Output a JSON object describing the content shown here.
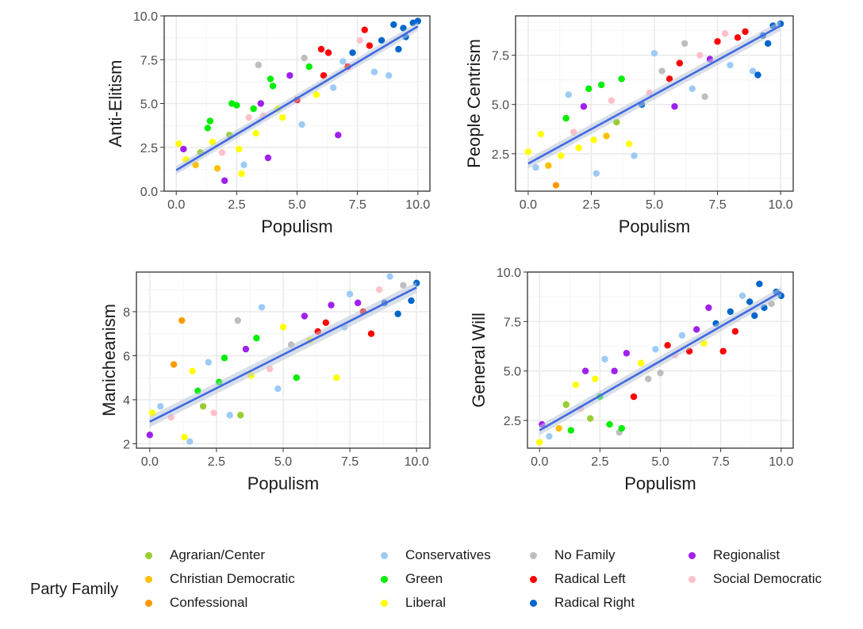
{
  "legend": {
    "title": "Party Family",
    "items": [
      {
        "label": "Agrarian/Center",
        "color": "#9ACD32"
      },
      {
        "label": "Christian Democratic",
        "color": "#FFC000"
      },
      {
        "label": "Confessional",
        "color": "#FF9900"
      },
      {
        "label": "Conservatives",
        "color": "#9DCBF5"
      },
      {
        "label": "Green",
        "color": "#00EE00"
      },
      {
        "label": "Liberal",
        "color": "#FFFF00"
      },
      {
        "label": "No Family",
        "color": "#BEBEBE"
      },
      {
        "label": "Radical Left",
        "color": "#FF0000"
      },
      {
        "label": "Radical Right",
        "color": "#0066CC"
      },
      {
        "label": "Regionalist",
        "color": "#A020F0"
      },
      {
        "label": "Social Democratic",
        "color": "#FFC0CB"
      }
    ]
  },
  "colors": {
    "trend_line": "#4169E1",
    "trend_band": "#B8C4D6",
    "grid_major": "#EBEBEB",
    "panel_border": "#333333"
  },
  "chart_data": [
    {
      "type": "scatter",
      "xlabel": "Populism",
      "ylabel": "Anti-Elitism",
      "xlim": [
        -0.5,
        10.5
      ],
      "ylim": [
        0.0,
        10.0
      ],
      "xticks": [
        "0.0",
        "2.5",
        "5.0",
        "7.5",
        "10.0"
      ],
      "yticks": [
        "0.0",
        "2.5",
        "5.0",
        "7.5",
        "10.0"
      ],
      "trend": {
        "x": [
          0.0,
          10.0
        ],
        "y": [
          1.2,
          9.4
        ]
      },
      "points": [
        {
          "x": 0.1,
          "y": 2.7,
          "g": "Liberal"
        },
        {
          "x": 0.3,
          "y": 2.4,
          "g": "Regionalist"
        },
        {
          "x": 0.4,
          "y": 1.8,
          "g": "Liberal"
        },
        {
          "x": 0.8,
          "y": 1.5,
          "g": "Christian Democratic"
        },
        {
          "x": 1.0,
          "y": 2.2,
          "g": "Agrarian/Center"
        },
        {
          "x": 1.3,
          "y": 3.6,
          "g": "Green"
        },
        {
          "x": 1.4,
          "y": 4.0,
          "g": "Green"
        },
        {
          "x": 1.5,
          "y": 2.8,
          "g": "Liberal"
        },
        {
          "x": 1.7,
          "y": 1.3,
          "g": "Christian Democratic"
        },
        {
          "x": 1.9,
          "y": 2.2,
          "g": "Social Democratic"
        },
        {
          "x": 2.0,
          "y": 0.6,
          "g": "Regionalist"
        },
        {
          "x": 2.2,
          "y": 3.2,
          "g": "Agrarian/Center"
        },
        {
          "x": 2.3,
          "y": 5.0,
          "g": "Green"
        },
        {
          "x": 2.5,
          "y": 4.9,
          "g": "Green"
        },
        {
          "x": 2.6,
          "y": 2.4,
          "g": "Liberal"
        },
        {
          "x": 2.7,
          "y": 1.0,
          "g": "Liberal"
        },
        {
          "x": 2.8,
          "y": 1.5,
          "g": "Conservatives"
        },
        {
          "x": 3.0,
          "y": 4.2,
          "g": "Social Democratic"
        },
        {
          "x": 3.2,
          "y": 4.7,
          "g": "Green"
        },
        {
          "x": 3.3,
          "y": 3.3,
          "g": "Liberal"
        },
        {
          "x": 3.4,
          "y": 7.2,
          "g": "No Family"
        },
        {
          "x": 3.5,
          "y": 5.0,
          "g": "Regionalist"
        },
        {
          "x": 3.6,
          "y": 4.3,
          "g": "Social Democratic"
        },
        {
          "x": 3.8,
          "y": 1.9,
          "g": "Regionalist"
        },
        {
          "x": 3.9,
          "y": 6.4,
          "g": "Green"
        },
        {
          "x": 4.0,
          "y": 6.0,
          "g": "Green"
        },
        {
          "x": 4.2,
          "y": 4.7,
          "g": "Liberal"
        },
        {
          "x": 4.4,
          "y": 4.2,
          "g": "Liberal"
        },
        {
          "x": 4.7,
          "y": 6.6,
          "g": "Regionalist"
        },
        {
          "x": 5.0,
          "y": 5.2,
          "g": "Radical Left"
        },
        {
          "x": 5.2,
          "y": 3.8,
          "g": "Conservatives"
        },
        {
          "x": 5.3,
          "y": 7.6,
          "g": "No Family"
        },
        {
          "x": 5.5,
          "y": 7.1,
          "g": "Green"
        },
        {
          "x": 5.8,
          "y": 5.5,
          "g": "Liberal"
        },
        {
          "x": 6.0,
          "y": 8.1,
          "g": "Radical Left"
        },
        {
          "x": 6.1,
          "y": 6.6,
          "g": "Radical Left"
        },
        {
          "x": 6.3,
          "y": 7.9,
          "g": "Radical Left"
        },
        {
          "x": 6.5,
          "y": 5.9,
          "g": "Conservatives"
        },
        {
          "x": 6.7,
          "y": 3.2,
          "g": "Regionalist"
        },
        {
          "x": 6.9,
          "y": 7.4,
          "g": "Conservatives"
        },
        {
          "x": 7.1,
          "y": 7.1,
          "g": "Radical Left"
        },
        {
          "x": 7.3,
          "y": 7.9,
          "g": "Radical Right"
        },
        {
          "x": 7.6,
          "y": 8.6,
          "g": "Social Democratic"
        },
        {
          "x": 7.8,
          "y": 9.2,
          "g": "Radical Left"
        },
        {
          "x": 8.0,
          "y": 8.3,
          "g": "Radical Left"
        },
        {
          "x": 8.2,
          "y": 6.8,
          "g": "Conservatives"
        },
        {
          "x": 8.5,
          "y": 8.6,
          "g": "Radical Right"
        },
        {
          "x": 8.8,
          "y": 6.6,
          "g": "Conservatives"
        },
        {
          "x": 9.0,
          "y": 9.5,
          "g": "Radical Right"
        },
        {
          "x": 9.2,
          "y": 8.1,
          "g": "Radical Right"
        },
        {
          "x": 9.4,
          "y": 9.3,
          "g": "Radical Right"
        },
        {
          "x": 9.5,
          "y": 8.8,
          "g": "Radical Right"
        },
        {
          "x": 9.8,
          "y": 9.6,
          "g": "Radical Right"
        },
        {
          "x": 10.0,
          "y": 9.7,
          "g": "Radical Right"
        }
      ]
    },
    {
      "type": "scatter",
      "xlabel": "Populism",
      "ylabel": "People Centrism",
      "xlim": [
        -0.5,
        10.5
      ],
      "ylim": [
        0.6,
        9.5
      ],
      "xticks": [
        "0.0",
        "2.5",
        "5.0",
        "7.5",
        "10.0"
      ],
      "yticks": [
        "2.5",
        "5.0",
        "7.5"
      ],
      "trend": {
        "x": [
          0.0,
          10.0
        ],
        "y": [
          2.0,
          9.0
        ]
      },
      "points": [
        {
          "x": 0.0,
          "y": 2.6,
          "g": "Liberal"
        },
        {
          "x": 0.3,
          "y": 1.8,
          "g": "Conservatives"
        },
        {
          "x": 0.5,
          "y": 3.5,
          "g": "Liberal"
        },
        {
          "x": 0.8,
          "y": 1.9,
          "g": "Christian Democratic"
        },
        {
          "x": 1.1,
          "y": 0.9,
          "g": "Confessional"
        },
        {
          "x": 1.3,
          "y": 2.4,
          "g": "Liberal"
        },
        {
          "x": 1.5,
          "y": 4.3,
          "g": "Green"
        },
        {
          "x": 1.6,
          "y": 5.5,
          "g": "Conservatives"
        },
        {
          "x": 1.8,
          "y": 3.6,
          "g": "Social Democratic"
        },
        {
          "x": 2.0,
          "y": 2.8,
          "g": "Liberal"
        },
        {
          "x": 2.2,
          "y": 4.9,
          "g": "Regionalist"
        },
        {
          "x": 2.4,
          "y": 5.8,
          "g": "Green"
        },
        {
          "x": 2.6,
          "y": 3.2,
          "g": "Liberal"
        },
        {
          "x": 2.7,
          "y": 1.5,
          "g": "Conservatives"
        },
        {
          "x": 2.9,
          "y": 6.0,
          "g": "Green"
        },
        {
          "x": 3.1,
          "y": 3.4,
          "g": "Christian Democratic"
        },
        {
          "x": 3.3,
          "y": 5.2,
          "g": "Social Democratic"
        },
        {
          "x": 3.5,
          "y": 4.1,
          "g": "Agrarian/Center"
        },
        {
          "x": 3.7,
          "y": 6.3,
          "g": "Green"
        },
        {
          "x": 4.0,
          "y": 3.0,
          "g": "Liberal"
        },
        {
          "x": 4.2,
          "y": 2.4,
          "g": "Conservatives"
        },
        {
          "x": 4.5,
          "y": 5.0,
          "g": "Radical Right"
        },
        {
          "x": 4.8,
          "y": 5.6,
          "g": "Social Democratic"
        },
        {
          "x": 5.0,
          "y": 7.6,
          "g": "Conservatives"
        },
        {
          "x": 5.3,
          "y": 6.7,
          "g": "No Family"
        },
        {
          "x": 5.6,
          "y": 6.3,
          "g": "Radical Left"
        },
        {
          "x": 5.8,
          "y": 4.9,
          "g": "Regionalist"
        },
        {
          "x": 6.0,
          "y": 7.1,
          "g": "Radical Left"
        },
        {
          "x": 6.2,
          "y": 8.1,
          "g": "No Family"
        },
        {
          "x": 6.5,
          "y": 5.8,
          "g": "Conservatives"
        },
        {
          "x": 6.8,
          "y": 7.5,
          "g": "Social Democratic"
        },
        {
          "x": 7.0,
          "y": 5.4,
          "g": "No Family"
        },
        {
          "x": 7.2,
          "y": 7.3,
          "g": "Regionalist"
        },
        {
          "x": 7.5,
          "y": 8.2,
          "g": "Radical Left"
        },
        {
          "x": 7.8,
          "y": 8.6,
          "g": "Social Democratic"
        },
        {
          "x": 8.0,
          "y": 7.0,
          "g": "Conservatives"
        },
        {
          "x": 8.3,
          "y": 8.4,
          "g": "Radical Left"
        },
        {
          "x": 8.6,
          "y": 8.7,
          "g": "Radical Left"
        },
        {
          "x": 8.9,
          "y": 6.7,
          "g": "Conservatives"
        },
        {
          "x": 9.1,
          "y": 6.5,
          "g": "Radical Right"
        },
        {
          "x": 9.3,
          "y": 8.5,
          "g": "Radical Right"
        },
        {
          "x": 9.5,
          "y": 8.1,
          "g": "Radical Right"
        },
        {
          "x": 9.7,
          "y": 9.0,
          "g": "Radical Right"
        },
        {
          "x": 10.0,
          "y": 9.1,
          "g": "Radical Right"
        }
      ]
    },
    {
      "type": "scatter",
      "xlabel": "Populism",
      "ylabel": "Manicheanism",
      "xlim": [
        -0.5,
        10.5
      ],
      "ylim": [
        1.8,
        9.8
      ],
      "xticks": [
        "0.0",
        "2.5",
        "5.0",
        "7.5",
        "10.0"
      ],
      "yticks": [
        "2",
        "4",
        "6",
        "8"
      ],
      "trend": {
        "x": [
          0.0,
          10.0
        ],
        "y": [
          3.0,
          9.1
        ]
      },
      "points": [
        {
          "x": 0.0,
          "y": 2.4,
          "g": "Regionalist"
        },
        {
          "x": 0.1,
          "y": 3.4,
          "g": "Liberal"
        },
        {
          "x": 0.4,
          "y": 3.7,
          "g": "Conservatives"
        },
        {
          "x": 0.8,
          "y": 3.2,
          "g": "Social Democratic"
        },
        {
          "x": 0.9,
          "y": 5.6,
          "g": "Confessional"
        },
        {
          "x": 1.2,
          "y": 7.6,
          "g": "Confessional"
        },
        {
          "x": 1.3,
          "y": 2.3,
          "g": "Liberal"
        },
        {
          "x": 1.5,
          "y": 2.1,
          "g": "Conservatives"
        },
        {
          "x": 1.6,
          "y": 5.3,
          "g": "Liberal"
        },
        {
          "x": 1.8,
          "y": 4.4,
          "g": "Green"
        },
        {
          "x": 2.0,
          "y": 3.7,
          "g": "Agrarian/Center"
        },
        {
          "x": 2.2,
          "y": 5.7,
          "g": "Conservatives"
        },
        {
          "x": 2.4,
          "y": 3.4,
          "g": "Social Democratic"
        },
        {
          "x": 2.6,
          "y": 4.8,
          "g": "Green"
        },
        {
          "x": 2.8,
          "y": 5.9,
          "g": "Green"
        },
        {
          "x": 3.0,
          "y": 3.3,
          "g": "Conservatives"
        },
        {
          "x": 3.3,
          "y": 7.6,
          "g": "No Family"
        },
        {
          "x": 3.4,
          "y": 3.3,
          "g": "Agrarian/Center"
        },
        {
          "x": 3.6,
          "y": 6.3,
          "g": "Regionalist"
        },
        {
          "x": 3.8,
          "y": 5.1,
          "g": "Liberal"
        },
        {
          "x": 4.0,
          "y": 6.8,
          "g": "Green"
        },
        {
          "x": 4.2,
          "y": 8.2,
          "g": "Conservatives"
        },
        {
          "x": 4.5,
          "y": 5.4,
          "g": "Social Democratic"
        },
        {
          "x": 4.8,
          "y": 4.5,
          "g": "Conservatives"
        },
        {
          "x": 5.0,
          "y": 7.3,
          "g": "Liberal"
        },
        {
          "x": 5.3,
          "y": 6.5,
          "g": "No Family"
        },
        {
          "x": 5.5,
          "y": 5.0,
          "g": "Green"
        },
        {
          "x": 5.8,
          "y": 7.8,
          "g": "Regionalist"
        },
        {
          "x": 6.0,
          "y": 6.7,
          "g": "Liberal"
        },
        {
          "x": 6.3,
          "y": 7.1,
          "g": "Radical Left"
        },
        {
          "x": 6.6,
          "y": 7.5,
          "g": "Radical Left"
        },
        {
          "x": 6.8,
          "y": 8.3,
          "g": "Regionalist"
        },
        {
          "x": 7.0,
          "y": 5.0,
          "g": "Liberal"
        },
        {
          "x": 7.3,
          "y": 7.3,
          "g": "Conservatives"
        },
        {
          "x": 7.5,
          "y": 8.8,
          "g": "Conservatives"
        },
        {
          "x": 7.8,
          "y": 8.4,
          "g": "Regionalist"
        },
        {
          "x": 8.0,
          "y": 8.0,
          "g": "Radical Left"
        },
        {
          "x": 8.3,
          "y": 7.0,
          "g": "Radical Left"
        },
        {
          "x": 8.6,
          "y": 9.0,
          "g": "Social Democratic"
        },
        {
          "x": 8.8,
          "y": 8.4,
          "g": "Radical Right"
        },
        {
          "x": 9.0,
          "y": 9.6,
          "g": "Conservatives"
        },
        {
          "x": 9.3,
          "y": 7.9,
          "g": "Radical Right"
        },
        {
          "x": 9.5,
          "y": 9.2,
          "g": "No Family"
        },
        {
          "x": 9.8,
          "y": 8.5,
          "g": "Radical Right"
        },
        {
          "x": 10.0,
          "y": 9.3,
          "g": "Radical Right"
        }
      ]
    },
    {
      "type": "scatter",
      "xlabel": "Populism",
      "ylabel": "General Will",
      "xlim": [
        -0.5,
        10.5
      ],
      "ylim": [
        1.1,
        10.0
      ],
      "xticks": [
        "0.0",
        "2.5",
        "5.0",
        "7.5",
        "10.0"
      ],
      "yticks": [
        "2.5",
        "5.0",
        "7.5",
        "10.0"
      ],
      "trend": {
        "x": [
          0.0,
          10.0
        ],
        "y": [
          2.0,
          9.0
        ]
      },
      "points": [
        {
          "x": 0.0,
          "y": 1.4,
          "g": "Liberal"
        },
        {
          "x": 0.1,
          "y": 2.3,
          "g": "Regionalist"
        },
        {
          "x": 0.4,
          "y": 1.7,
          "g": "Conservatives"
        },
        {
          "x": 0.8,
          "y": 2.1,
          "g": "Christian Democratic"
        },
        {
          "x": 1.1,
          "y": 3.3,
          "g": "Agrarian/Center"
        },
        {
          "x": 1.3,
          "y": 2.0,
          "g": "Green"
        },
        {
          "x": 1.5,
          "y": 4.3,
          "g": "Liberal"
        },
        {
          "x": 1.7,
          "y": 3.1,
          "g": "Social Democratic"
        },
        {
          "x": 1.9,
          "y": 5.0,
          "g": "Regionalist"
        },
        {
          "x": 2.1,
          "y": 2.6,
          "g": "Agrarian/Center"
        },
        {
          "x": 2.3,
          "y": 4.6,
          "g": "Liberal"
        },
        {
          "x": 2.5,
          "y": 3.7,
          "g": "Green"
        },
        {
          "x": 2.7,
          "y": 5.6,
          "g": "Conservatives"
        },
        {
          "x": 2.9,
          "y": 2.3,
          "g": "Green"
        },
        {
          "x": 3.1,
          "y": 5.0,
          "g": "Regionalist"
        },
        {
          "x": 3.3,
          "y": 1.9,
          "g": "No Family"
        },
        {
          "x": 3.4,
          "y": 2.1,
          "g": "Green"
        },
        {
          "x": 3.6,
          "y": 5.9,
          "g": "Regionalist"
        },
        {
          "x": 3.9,
          "y": 3.7,
          "g": "Radical Left"
        },
        {
          "x": 4.2,
          "y": 5.4,
          "g": "Liberal"
        },
        {
          "x": 4.5,
          "y": 4.6,
          "g": "No Family"
        },
        {
          "x": 4.8,
          "y": 6.1,
          "g": "Conservatives"
        },
        {
          "x": 5.0,
          "y": 4.9,
          "g": "No Family"
        },
        {
          "x": 5.3,
          "y": 6.3,
          "g": "Radical Left"
        },
        {
          "x": 5.6,
          "y": 5.8,
          "g": "Social Democratic"
        },
        {
          "x": 5.9,
          "y": 6.8,
          "g": "Conservatives"
        },
        {
          "x": 6.2,
          "y": 6.0,
          "g": "Radical Left"
        },
        {
          "x": 6.5,
          "y": 7.1,
          "g": "Regionalist"
        },
        {
          "x": 6.8,
          "y": 6.4,
          "g": "Liberal"
        },
        {
          "x": 7.0,
          "y": 8.2,
          "g": "Regionalist"
        },
        {
          "x": 7.3,
          "y": 7.4,
          "g": "Radical Right"
        },
        {
          "x": 7.6,
          "y": 6.0,
          "g": "Radical Left"
        },
        {
          "x": 7.9,
          "y": 8.0,
          "g": "Radical Right"
        },
        {
          "x": 8.1,
          "y": 7.0,
          "g": "Radical Left"
        },
        {
          "x": 8.4,
          "y": 8.8,
          "g": "Conservatives"
        },
        {
          "x": 8.7,
          "y": 8.5,
          "g": "Radical Right"
        },
        {
          "x": 8.9,
          "y": 7.8,
          "g": "Radical Right"
        },
        {
          "x": 9.1,
          "y": 9.4,
          "g": "Radical Right"
        },
        {
          "x": 9.3,
          "y": 8.2,
          "g": "Radical Right"
        },
        {
          "x": 9.6,
          "y": 8.4,
          "g": "No Family"
        },
        {
          "x": 9.8,
          "y": 9.0,
          "g": "Radical Right"
        },
        {
          "x": 10.0,
          "y": 8.8,
          "g": "Radical Right"
        }
      ]
    }
  ]
}
